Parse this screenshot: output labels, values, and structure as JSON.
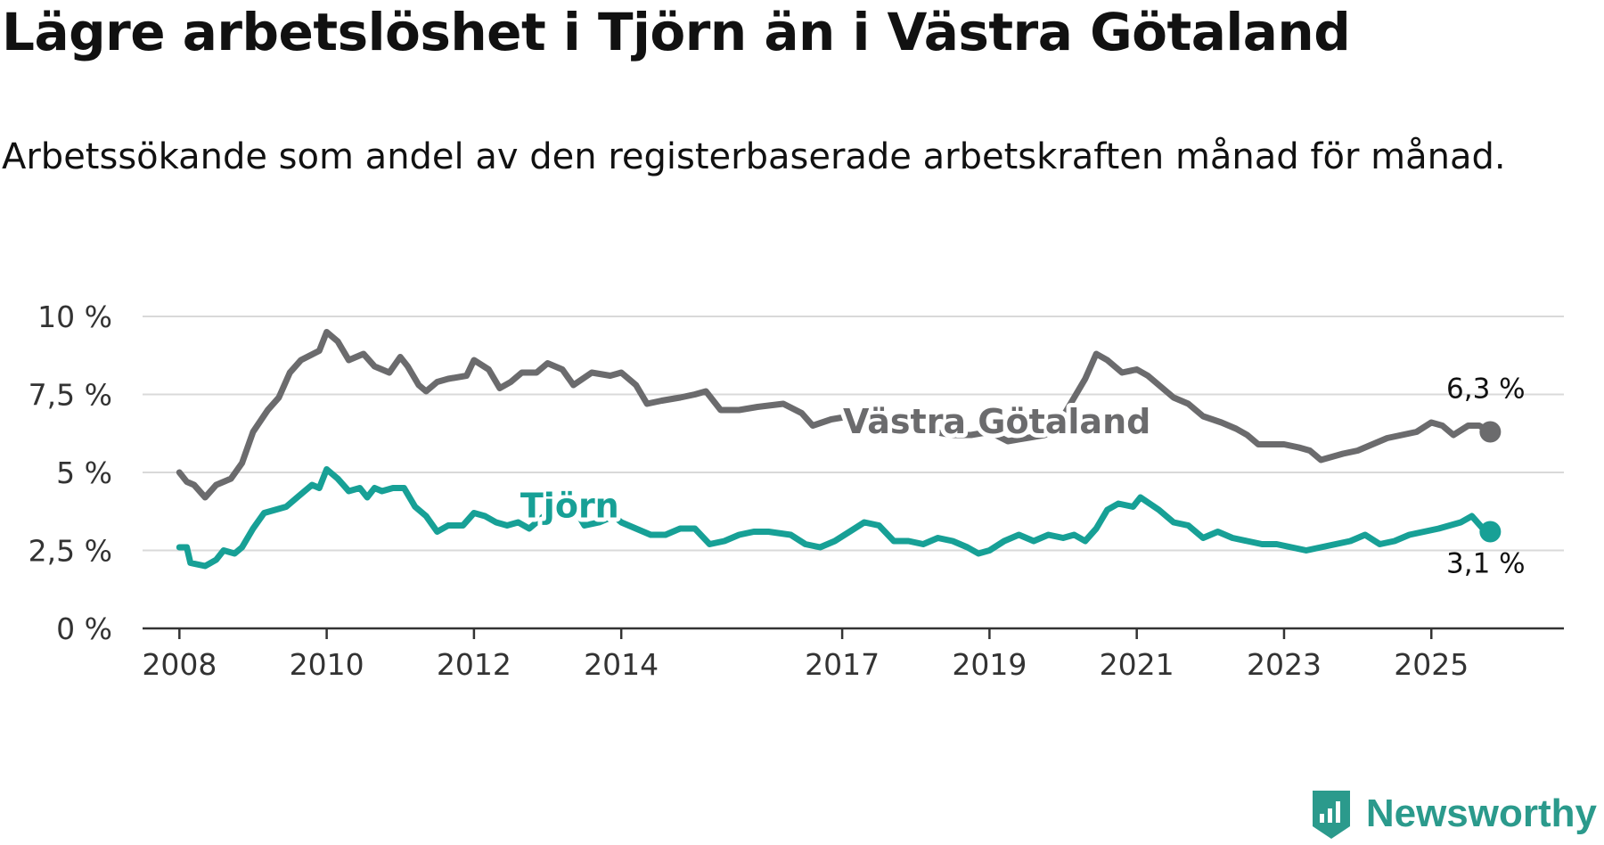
{
  "header": {
    "title": "Lägre arbetslöshet i Tjörn än i Västra Götaland",
    "subtitle": "Arbetssökande som andel av den registerbaserade arbetskraften månad för månad."
  },
  "brand": {
    "name": "Newsworthy",
    "logo_icon": "newsworthy-logo-icon"
  },
  "colors": {
    "vastra_gotaland": "#6b6b6d",
    "tjorn": "#17a096",
    "grid": "#d9d9d9",
    "axis": "#333333"
  },
  "chart_data": {
    "type": "line",
    "title": "Lägre arbetslöshet i Tjörn än i Västra Götaland",
    "xlabel": "",
    "ylabel": "",
    "ylim": [
      0,
      10
    ],
    "xlim": [
      2007.5,
      2026.8
    ],
    "yticks": [
      0,
      2.5,
      5,
      7.5,
      10
    ],
    "ytick_labels": [
      "0 %",
      "2,5 %",
      "5 %",
      "7,5 %",
      "10 %"
    ],
    "xticks": [
      2008,
      2010,
      2012,
      2014,
      2017,
      2019,
      2021,
      2023,
      2025
    ],
    "xtick_labels": [
      "2008",
      "2010",
      "2012",
      "2014",
      "2017",
      "2019",
      "2021",
      "2023",
      "2025"
    ],
    "grid": true,
    "series": [
      {
        "name": "Västra Götaland",
        "label": "Västra Götaland",
        "end_label": "6,3 %",
        "color": "#6b6b6d",
        "points": [
          [
            2008.0,
            5.0
          ],
          [
            2008.1,
            4.7
          ],
          [
            2008.2,
            4.6
          ],
          [
            2008.35,
            4.2
          ],
          [
            2008.5,
            4.6
          ],
          [
            2008.7,
            4.8
          ],
          [
            2008.85,
            5.3
          ],
          [
            2009.0,
            6.3
          ],
          [
            2009.2,
            7.0
          ],
          [
            2009.35,
            7.4
          ],
          [
            2009.5,
            8.2
          ],
          [
            2009.65,
            8.6
          ],
          [
            2009.9,
            8.9
          ],
          [
            2010.0,
            9.5
          ],
          [
            2010.15,
            9.2
          ],
          [
            2010.3,
            8.6
          ],
          [
            2010.5,
            8.8
          ],
          [
            2010.65,
            8.4
          ],
          [
            2010.85,
            8.2
          ],
          [
            2011.0,
            8.7
          ],
          [
            2011.1,
            8.4
          ],
          [
            2011.25,
            7.8
          ],
          [
            2011.35,
            7.6
          ],
          [
            2011.5,
            7.9
          ],
          [
            2011.65,
            8.0
          ],
          [
            2011.9,
            8.1
          ],
          [
            2012.0,
            8.6
          ],
          [
            2012.2,
            8.3
          ],
          [
            2012.35,
            7.7
          ],
          [
            2012.5,
            7.9
          ],
          [
            2012.65,
            8.2
          ],
          [
            2012.85,
            8.2
          ],
          [
            2013.0,
            8.5
          ],
          [
            2013.2,
            8.3
          ],
          [
            2013.35,
            7.8
          ],
          [
            2013.6,
            8.2
          ],
          [
            2013.85,
            8.1
          ],
          [
            2014.0,
            8.2
          ],
          [
            2014.2,
            7.8
          ],
          [
            2014.35,
            7.2
          ],
          [
            2014.55,
            7.3
          ],
          [
            2014.8,
            7.4
          ],
          [
            2015.0,
            7.5
          ],
          [
            2015.15,
            7.6
          ],
          [
            2015.35,
            7.0
          ],
          [
            2015.6,
            7.0
          ],
          [
            2015.85,
            7.1
          ],
          [
            2016.2,
            7.2
          ],
          [
            2016.45,
            6.9
          ],
          [
            2016.6,
            6.5
          ],
          [
            2016.85,
            6.7
          ],
          [
            2017.1,
            6.8
          ],
          [
            2017.35,
            6.8
          ],
          [
            2017.55,
            6.5
          ],
          [
            2017.75,
            6.3
          ],
          [
            2018.0,
            6.5
          ],
          [
            2018.25,
            6.3
          ],
          [
            2018.5,
            6.2
          ],
          [
            2018.75,
            6.2
          ],
          [
            2019.0,
            6.3
          ],
          [
            2019.25,
            6.0
          ],
          [
            2019.5,
            6.1
          ],
          [
            2019.75,
            6.2
          ],
          [
            2019.9,
            6.4
          ],
          [
            2020.1,
            7.2
          ],
          [
            2020.3,
            8.0
          ],
          [
            2020.45,
            8.8
          ],
          [
            2020.6,
            8.6
          ],
          [
            2020.8,
            8.2
          ],
          [
            2021.0,
            8.3
          ],
          [
            2021.15,
            8.1
          ],
          [
            2021.3,
            7.8
          ],
          [
            2021.5,
            7.4
          ],
          [
            2021.7,
            7.2
          ],
          [
            2021.9,
            6.8
          ],
          [
            2022.15,
            6.6
          ],
          [
            2022.35,
            6.4
          ],
          [
            2022.5,
            6.2
          ],
          [
            2022.65,
            5.9
          ],
          [
            2023.0,
            5.9
          ],
          [
            2023.2,
            5.8
          ],
          [
            2023.35,
            5.7
          ],
          [
            2023.5,
            5.4
          ],
          [
            2023.65,
            5.5
          ],
          [
            2023.8,
            5.6
          ],
          [
            2024.0,
            5.7
          ],
          [
            2024.2,
            5.9
          ],
          [
            2024.4,
            6.1
          ],
          [
            2024.6,
            6.2
          ],
          [
            2024.8,
            6.3
          ],
          [
            2025.0,
            6.6
          ],
          [
            2025.15,
            6.5
          ],
          [
            2025.3,
            6.2
          ],
          [
            2025.5,
            6.5
          ],
          [
            2025.65,
            6.5
          ],
          [
            2025.8,
            6.3
          ]
        ]
      },
      {
        "name": "Tjörn",
        "label": "Tjörn",
        "end_label": "3,1 %",
        "color": "#17a096",
        "points": [
          [
            2008.0,
            2.6
          ],
          [
            2008.1,
            2.6
          ],
          [
            2008.15,
            2.1
          ],
          [
            2008.35,
            2.0
          ],
          [
            2008.5,
            2.2
          ],
          [
            2008.6,
            2.5
          ],
          [
            2008.75,
            2.4
          ],
          [
            2008.85,
            2.6
          ],
          [
            2009.0,
            3.2
          ],
          [
            2009.15,
            3.7
          ],
          [
            2009.3,
            3.8
          ],
          [
            2009.45,
            3.9
          ],
          [
            2009.6,
            4.2
          ],
          [
            2009.8,
            4.6
          ],
          [
            2009.9,
            4.5
          ],
          [
            2010.0,
            5.1
          ],
          [
            2010.15,
            4.8
          ],
          [
            2010.3,
            4.4
          ],
          [
            2010.45,
            4.5
          ],
          [
            2010.55,
            4.2
          ],
          [
            2010.65,
            4.5
          ],
          [
            2010.75,
            4.4
          ],
          [
            2010.9,
            4.5
          ],
          [
            2011.05,
            4.5
          ],
          [
            2011.2,
            3.9
          ],
          [
            2011.35,
            3.6
          ],
          [
            2011.5,
            3.1
          ],
          [
            2011.65,
            3.3
          ],
          [
            2011.85,
            3.3
          ],
          [
            2012.0,
            3.7
          ],
          [
            2012.15,
            3.6
          ],
          [
            2012.3,
            3.4
          ],
          [
            2012.45,
            3.3
          ],
          [
            2012.6,
            3.4
          ],
          [
            2012.75,
            3.2
          ],
          [
            2012.9,
            3.5
          ],
          [
            2013.0,
            3.7
          ],
          [
            2013.15,
            4.1
          ],
          [
            2013.35,
            3.9
          ],
          [
            2013.5,
            3.3
          ],
          [
            2013.7,
            3.4
          ],
          [
            2013.9,
            3.6
          ],
          [
            2014.0,
            3.4
          ],
          [
            2014.2,
            3.2
          ],
          [
            2014.4,
            3.0
          ],
          [
            2014.6,
            3.0
          ],
          [
            2014.8,
            3.2
          ],
          [
            2015.0,
            3.2
          ],
          [
            2015.2,
            2.7
          ],
          [
            2015.4,
            2.8
          ],
          [
            2015.6,
            3.0
          ],
          [
            2015.8,
            3.1
          ],
          [
            2016.0,
            3.1
          ],
          [
            2016.3,
            3.0
          ],
          [
            2016.5,
            2.7
          ],
          [
            2016.7,
            2.6
          ],
          [
            2016.9,
            2.8
          ],
          [
            2017.1,
            3.1
          ],
          [
            2017.3,
            3.4
          ],
          [
            2017.5,
            3.3
          ],
          [
            2017.7,
            2.8
          ],
          [
            2017.9,
            2.8
          ],
          [
            2018.1,
            2.7
          ],
          [
            2018.3,
            2.9
          ],
          [
            2018.5,
            2.8
          ],
          [
            2018.7,
            2.6
          ],
          [
            2018.85,
            2.4
          ],
          [
            2019.0,
            2.5
          ],
          [
            2019.2,
            2.8
          ],
          [
            2019.4,
            3.0
          ],
          [
            2019.6,
            2.8
          ],
          [
            2019.8,
            3.0
          ],
          [
            2020.0,
            2.9
          ],
          [
            2020.15,
            3.0
          ],
          [
            2020.3,
            2.8
          ],
          [
            2020.45,
            3.2
          ],
          [
            2020.6,
            3.8
          ],
          [
            2020.75,
            4.0
          ],
          [
            2020.95,
            3.9
          ],
          [
            2021.05,
            4.2
          ],
          [
            2021.3,
            3.8
          ],
          [
            2021.5,
            3.4
          ],
          [
            2021.7,
            3.3
          ],
          [
            2021.9,
            2.9
          ],
          [
            2022.1,
            3.1
          ],
          [
            2022.3,
            2.9
          ],
          [
            2022.5,
            2.8
          ],
          [
            2022.7,
            2.7
          ],
          [
            2022.9,
            2.7
          ],
          [
            2023.1,
            2.6
          ],
          [
            2023.3,
            2.5
          ],
          [
            2023.5,
            2.6
          ],
          [
            2023.7,
            2.7
          ],
          [
            2023.9,
            2.8
          ],
          [
            2024.1,
            3.0
          ],
          [
            2024.3,
            2.7
          ],
          [
            2024.5,
            2.8
          ],
          [
            2024.7,
            3.0
          ],
          [
            2024.9,
            3.1
          ],
          [
            2025.1,
            3.2
          ],
          [
            2025.25,
            3.3
          ],
          [
            2025.4,
            3.4
          ],
          [
            2025.55,
            3.6
          ],
          [
            2025.7,
            3.2
          ],
          [
            2025.8,
            3.1
          ]
        ]
      }
    ]
  }
}
